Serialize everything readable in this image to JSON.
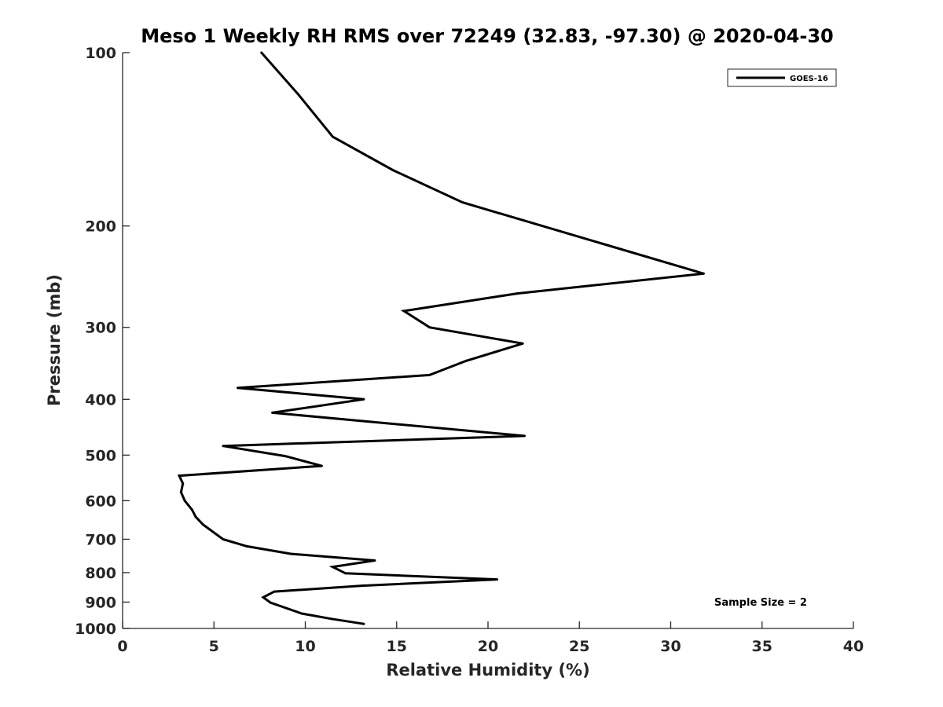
{
  "chart_data": {
    "type": "line",
    "title": "Meso 1 Weekly RH RMS over 72249 (32.83, -97.30) @ 2020-04-30",
    "xlabel": "Relative Humidity (%)",
    "ylabel": "Pressure (mb)",
    "xlim": [
      0,
      40
    ],
    "ylim": [
      100,
      1000
    ],
    "y_scale": "log",
    "y_reversed": true,
    "grid": false,
    "legend_position": "top-right",
    "xticks": [
      0,
      5,
      10,
      15,
      20,
      25,
      30,
      35,
      40
    ],
    "xtick_labels": [
      "0",
      "5",
      "10",
      "15",
      "20",
      "25",
      "30",
      "35",
      "40"
    ],
    "yticks": [
      100,
      200,
      300,
      400,
      500,
      600,
      700,
      800,
      900,
      1000
    ],
    "ytick_labels": [
      "100",
      "200",
      "300",
      "400",
      "500",
      "600",
      "700",
      "800",
      "900",
      "1000"
    ],
    "series": [
      {
        "name": "GOES-16",
        "color": "#000000",
        "points": [
          {
            "x": 7.6,
            "p": 100
          },
          {
            "x": 9.6,
            "p": 118
          },
          {
            "x": 11.5,
            "p": 140
          },
          {
            "x": 14.8,
            "p": 160
          },
          {
            "x": 18.6,
            "p": 182
          },
          {
            "x": 31.8,
            "p": 242
          },
          {
            "x": 21.6,
            "p": 262
          },
          {
            "x": 15.4,
            "p": 281
          },
          {
            "x": 16.8,
            "p": 300
          },
          {
            "x": 21.9,
            "p": 320
          },
          {
            "x": 18.8,
            "p": 343
          },
          {
            "x": 16.8,
            "p": 363
          },
          {
            "x": 6.3,
            "p": 382
          },
          {
            "x": 13.2,
            "p": 400
          },
          {
            "x": 8.2,
            "p": 422
          },
          {
            "x": 22.0,
            "p": 463
          },
          {
            "x": 5.5,
            "p": 482
          },
          {
            "x": 8.9,
            "p": 502
          },
          {
            "x": 10.9,
            "p": 522
          },
          {
            "x": 3.1,
            "p": 543
          },
          {
            "x": 3.3,
            "p": 560
          },
          {
            "x": 3.2,
            "p": 580
          },
          {
            "x": 3.4,
            "p": 600
          },
          {
            "x": 3.8,
            "p": 622
          },
          {
            "x": 4.0,
            "p": 640
          },
          {
            "x": 4.4,
            "p": 660
          },
          {
            "x": 5.5,
            "p": 700
          },
          {
            "x": 6.8,
            "p": 720
          },
          {
            "x": 9.2,
            "p": 742
          },
          {
            "x": 13.8,
            "p": 762
          },
          {
            "x": 11.5,
            "p": 782
          },
          {
            "x": 12.2,
            "p": 802
          },
          {
            "x": 20.5,
            "p": 822
          },
          {
            "x": 13.1,
            "p": 843
          },
          {
            "x": 8.3,
            "p": 863
          },
          {
            "x": 7.7,
            "p": 883
          },
          {
            "x": 8.1,
            "p": 902
          },
          {
            "x": 9.8,
            "p": 942
          },
          {
            "x": 11.4,
            "p": 962
          },
          {
            "x": 13.2,
            "p": 982
          }
        ]
      }
    ],
    "annotations": [
      {
        "text": "Sample Size = 2",
        "position": "bottom-right"
      }
    ]
  }
}
